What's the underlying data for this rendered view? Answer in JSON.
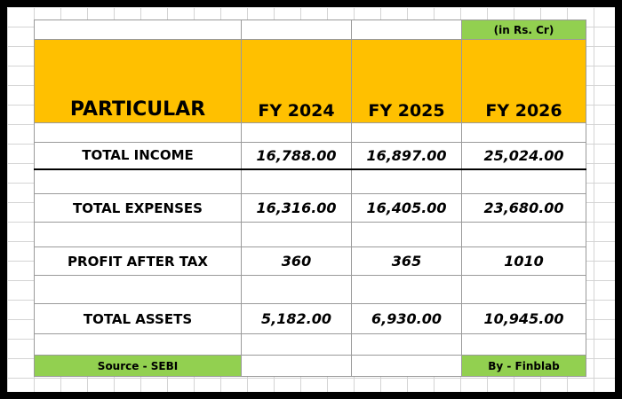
{
  "unit_note": "(in Rs. Cr)",
  "header": {
    "particular": "PARTICULAR",
    "years": [
      "FY 2024",
      "FY 2025",
      "FY 2026"
    ]
  },
  "rows": [
    {
      "label": "TOTAL INCOME",
      "values": [
        "16,788.00",
        "16,897.00",
        "25,024.00"
      ]
    },
    {
      "label": "TOTAL EXPENSES",
      "values": [
        "16,316.00",
        "16,405.00",
        "23,680.00"
      ]
    },
    {
      "label": "PROFIT AFTER TAX",
      "values": [
        "360",
        "365",
        "1010"
      ]
    },
    {
      "label": "TOTAL ASSETS",
      "values": [
        "5,182.00",
        "6,930.00",
        "10,945.00"
      ]
    }
  ],
  "footer": {
    "source": "Source - SEBI",
    "by": "By - Finblab"
  },
  "colors": {
    "header_fill": "#ffc000",
    "note_fill": "#92d050",
    "border_frame": "#000000"
  }
}
